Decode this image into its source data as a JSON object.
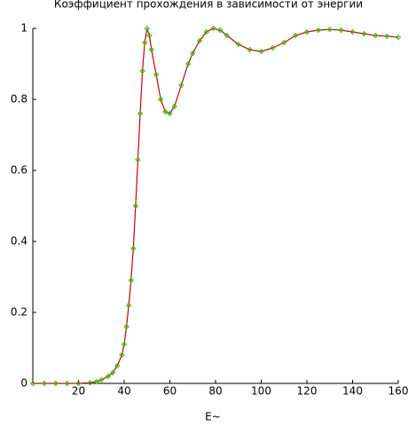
{
  "chart_data": {
    "type": "line",
    "title": "Коэффициент прохождения в зависимости от энергии",
    "x_label": "E~",
    "x": [
      0,
      5,
      10,
      15,
      20,
      25,
      28,
      30,
      33,
      35,
      37,
      39,
      40,
      41,
      42,
      43,
      44,
      45,
      46,
      47,
      48,
      49,
      50,
      51,
      52,
      54,
      56,
      58,
      60,
      62,
      65,
      68,
      70,
      73,
      76,
      79,
      82,
      85,
      90,
      95,
      100,
      105,
      110,
      115,
      120,
      125,
      130,
      135,
      140,
      145,
      150,
      155,
      160
    ],
    "series": [
      {
        "color": "#cc0000",
        "marker_color": "#22cc00",
        "values": [
          0,
          0,
          0,
          0,
          0,
          0.002,
          0.005,
          0.01,
          0.02,
          0.03,
          0.05,
          0.08,
          0.11,
          0.16,
          0.22,
          0.29,
          0.38,
          0.5,
          0.63,
          0.76,
          0.88,
          0.96,
          1.0,
          0.98,
          0.94,
          0.87,
          0.8,
          0.765,
          0.76,
          0.78,
          0.84,
          0.9,
          0.93,
          0.965,
          0.99,
          1.0,
          0.995,
          0.98,
          0.955,
          0.94,
          0.935,
          0.945,
          0.96,
          0.98,
          0.99,
          0.995,
          0.997,
          0.995,
          0.99,
          0.985,
          0.98,
          0.978,
          0.975
        ]
      }
    ],
    "xlim": [
      0,
      160
    ],
    "ylim": [
      0,
      1
    ],
    "xticks": [
      20,
      40,
      60,
      80,
      100,
      120,
      140,
      160
    ],
    "yticks": [
      0,
      0.2,
      0.4,
      0.6,
      0.8,
      1
    ]
  }
}
